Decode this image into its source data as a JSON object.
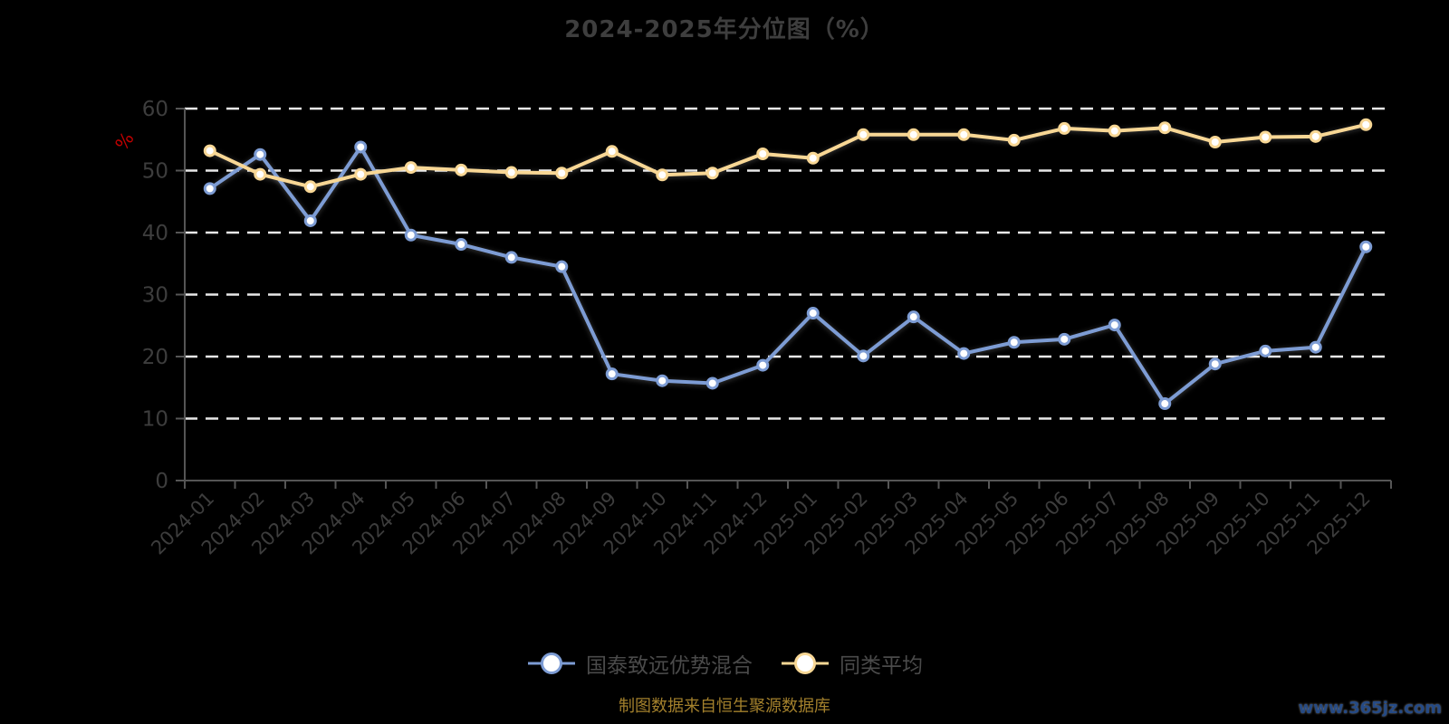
{
  "title": "2024-2025年分位图（%）",
  "footer": {
    "source_note": "制图数据来自恒生聚源数据库",
    "watermark": "www.365jz.com"
  },
  "colors": {
    "background": "#000000",
    "grid": "#e8e8e8",
    "axis": "#555555",
    "axis_label": "#3d3d3d",
    "title_text": "#3e3e3e",
    "legend_text": "#4a4a4a",
    "unit_label": "#c00000",
    "source_note": "#a3802c",
    "watermark": "#254a85",
    "marker_fill": "#ffffff",
    "series_blue": "#7d9cd4",
    "series_yellow": "#f8d795"
  },
  "chart_data": {
    "type": "line",
    "title": "2024-2025年分位图（%）",
    "xlabel": "",
    "ylabel": "%",
    "ylim": [
      0,
      60
    ],
    "ytick_step": 10,
    "yticks": [
      "0",
      "10",
      "20",
      "30",
      "40",
      "50",
      "60"
    ],
    "grid": true,
    "grid_style": "dashed",
    "legend_position": "bottom",
    "categories": [
      "2024-01",
      "2024-02",
      "2024-03",
      "2024-04",
      "2024-05",
      "2024-06",
      "2024-07",
      "2024-08",
      "2024-09",
      "2024-10",
      "2024-11",
      "2024-12",
      "2025-01",
      "2025-02",
      "2025-03",
      "2025-04",
      "2025-05",
      "2025-06",
      "2025-07",
      "2025-08",
      "2025-09",
      "2025-10",
      "2025-11",
      "2025-12"
    ],
    "series": [
      {
        "name": "国泰致远优势混合",
        "color": "#7d9cd4",
        "values": [
          47.1,
          52.6,
          41.9,
          53.8,
          39.6,
          38.1,
          36.0,
          34.5,
          17.2,
          16.1,
          15.7,
          18.6,
          27.0,
          20.1,
          26.4,
          20.5,
          22.3,
          22.8,
          25.1,
          12.4,
          18.8,
          20.9,
          21.5,
          37.7
        ]
      },
      {
        "name": "同类平均",
        "color": "#f8d795",
        "values": [
          53.2,
          49.4,
          47.4,
          49.4,
          50.5,
          50.1,
          49.7,
          49.6,
          53.1,
          49.3,
          49.6,
          52.7,
          52.0,
          55.8,
          55.8,
          55.8,
          54.9,
          56.8,
          56.4,
          56.9,
          54.6,
          55.4,
          55.5,
          57.4
        ]
      }
    ]
  }
}
